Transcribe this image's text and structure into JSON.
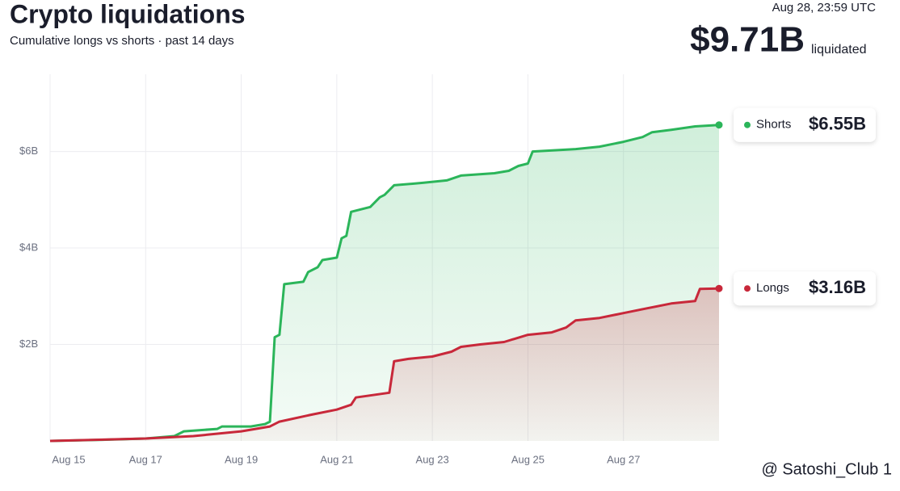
{
  "chart_data": {
    "type": "line",
    "title": "Crypto liquidations",
    "subtitle": "Cumulative longs vs shorts · past 14 days",
    "timestamp": "Aug 28, 23:59 UTC",
    "total_label": "$9.71B",
    "total_caption": "liquidated",
    "watermark": "@ Satoshi_Club 1",
    "xlim": [
      15,
      29
    ],
    "xticks": [
      {
        "value": 15,
        "label": "Aug 15"
      },
      {
        "value": 17,
        "label": "Aug 17"
      },
      {
        "value": 19,
        "label": "Aug 19"
      },
      {
        "value": 21,
        "label": "Aug 21"
      },
      {
        "value": 23,
        "label": "Aug 23"
      },
      {
        "value": 25,
        "label": "Aug 25"
      },
      {
        "value": 27,
        "label": "Aug 27"
      }
    ],
    "ylim": [
      0,
      7.6
    ],
    "yticks": [
      {
        "value": 2,
        "label": "$2B"
      },
      {
        "value": 4,
        "label": "$4B"
      },
      {
        "value": 6,
        "label": "$6B"
      }
    ],
    "grid": true,
    "series": [
      {
        "name": "Shorts",
        "color": "#2bb55a",
        "x": [
          15,
          16,
          17,
          17.6,
          17.8,
          18.5,
          18.6,
          19.2,
          19.5,
          19.6,
          19.7,
          19.8,
          19.9,
          20.3,
          20.4,
          20.6,
          20.7,
          21.0,
          21.1,
          21.2,
          21.3,
          21.7,
          21.9,
          22.0,
          22.2,
          22.8,
          23.3,
          23.6,
          24.3,
          24.6,
          24.8,
          25.0,
          25.1,
          26.0,
          26.5,
          27.0,
          27.4,
          27.6,
          28.0,
          28.5,
          29
        ],
        "values": [
          0,
          0.02,
          0.05,
          0.1,
          0.2,
          0.25,
          0.3,
          0.3,
          0.35,
          0.4,
          2.15,
          2.2,
          3.25,
          3.3,
          3.5,
          3.6,
          3.75,
          3.8,
          4.2,
          4.25,
          4.75,
          4.85,
          5.05,
          5.1,
          5.3,
          5.35,
          5.4,
          5.5,
          5.55,
          5.6,
          5.7,
          5.75,
          6.0,
          6.05,
          6.1,
          6.2,
          6.3,
          6.4,
          6.45,
          6.52,
          6.55
        ],
        "value_labels": [
          null,
          null,
          null,
          null,
          null,
          null,
          null,
          null,
          null,
          null,
          null,
          null,
          null,
          null,
          null,
          null,
          null,
          null,
          null,
          null,
          null,
          null,
          null,
          null,
          null,
          null,
          null,
          null,
          null,
          null,
          null,
          null,
          null,
          null,
          null,
          null,
          null,
          null,
          null,
          null,
          "$6.55B"
        ]
      },
      {
        "name": "Longs",
        "color": "#c8283a",
        "x": [
          15,
          17,
          18,
          19,
          19.6,
          19.8,
          20.5,
          21.0,
          21.3,
          21.4,
          22.1,
          22.2,
          22.5,
          23.0,
          23.4,
          23.6,
          24.0,
          24.5,
          25.0,
          25.5,
          25.8,
          26.0,
          26.5,
          27.0,
          27.5,
          28.0,
          28.5,
          28.6,
          29
        ],
        "values": [
          0,
          0.05,
          0.1,
          0.2,
          0.3,
          0.4,
          0.55,
          0.65,
          0.75,
          0.9,
          1.0,
          1.65,
          1.7,
          1.75,
          1.85,
          1.95,
          2.0,
          2.05,
          2.2,
          2.25,
          2.35,
          2.5,
          2.55,
          2.65,
          2.75,
          2.85,
          2.9,
          3.15,
          3.16
        ],
        "value_labels": [
          null,
          null,
          null,
          null,
          null,
          null,
          null,
          null,
          null,
          null,
          null,
          null,
          null,
          null,
          null,
          null,
          null,
          null,
          null,
          null,
          null,
          null,
          null,
          null,
          null,
          null,
          null,
          null,
          "$3.16B"
        ]
      }
    ]
  }
}
